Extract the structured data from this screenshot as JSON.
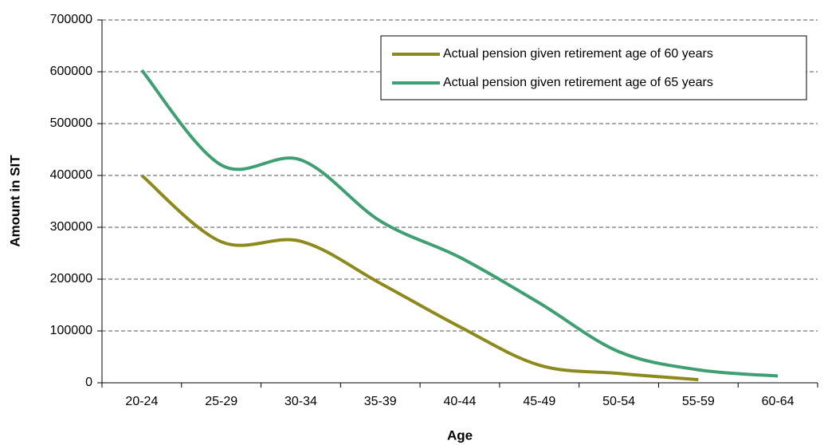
{
  "chart_data": {
    "type": "line",
    "x_label": "Age",
    "y_label": "Amount in SIT",
    "categories": [
      "20-24",
      "25-29",
      "30-34",
      "35-39",
      "40-44",
      "45-49",
      "50-54",
      "55-59",
      "60-64"
    ],
    "series": [
      {
        "name": "Actual pension given retirement age of 60 years",
        "color": "#8c8a1c",
        "values": [
          400000,
          272000,
          273000,
          192000,
          108000,
          34000,
          18000,
          6000,
          null
        ]
      },
      {
        "name": "Actual pension given retirement age of 65 years",
        "color": "#3f9f72",
        "values": [
          603000,
          420000,
          430000,
          312000,
          242000,
          154000,
          60000,
          25000,
          13000
        ]
      }
    ],
    "ylim": [
      0,
      700000
    ],
    "yticks": [
      0,
      100000,
      200000,
      300000,
      400000,
      500000,
      600000,
      700000
    ],
    "grid": true,
    "legend": "upper right"
  }
}
